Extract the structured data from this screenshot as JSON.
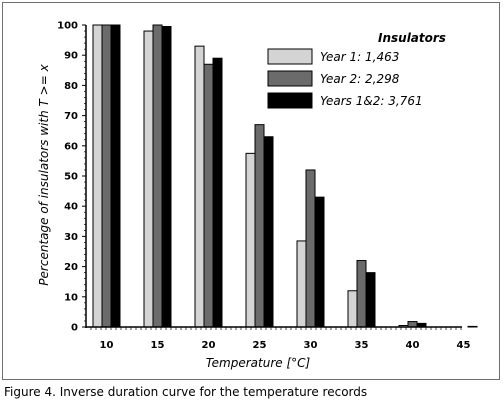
{
  "caption": "Figure 4. Inverse duration curve for the temperature records",
  "chart_data": {
    "type": "bar",
    "title": "",
    "xlabel": "Temperature [°C]",
    "ylabel": "Percentage of insulators with T >= x",
    "ylim": [
      0,
      100
    ],
    "yticks": [
      0,
      10,
      20,
      30,
      40,
      50,
      60,
      70,
      80,
      90,
      100
    ],
    "categories": [
      "10",
      "15",
      "20",
      "25",
      "30",
      "35",
      "40",
      "45"
    ],
    "grid": false,
    "legend": {
      "title": "Insulators",
      "placement": "top-right"
    },
    "series": [
      {
        "name": "Year 1:  1,463",
        "color": "#d4d4d4",
        "values": [
          100,
          98,
          93,
          57.5,
          28.5,
          12,
          0.5,
          0
        ]
      },
      {
        "name": "Year 2:  2,298",
        "color": "#6b6b6b",
        "values": [
          100,
          100,
          87,
          67,
          52,
          22,
          1.8,
          0
        ]
      },
      {
        "name": "Years 1&2:  3,761",
        "color": "#000000",
        "values": [
          100,
          99.5,
          89,
          63,
          43,
          18,
          1.2,
          0.2
        ]
      }
    ]
  }
}
